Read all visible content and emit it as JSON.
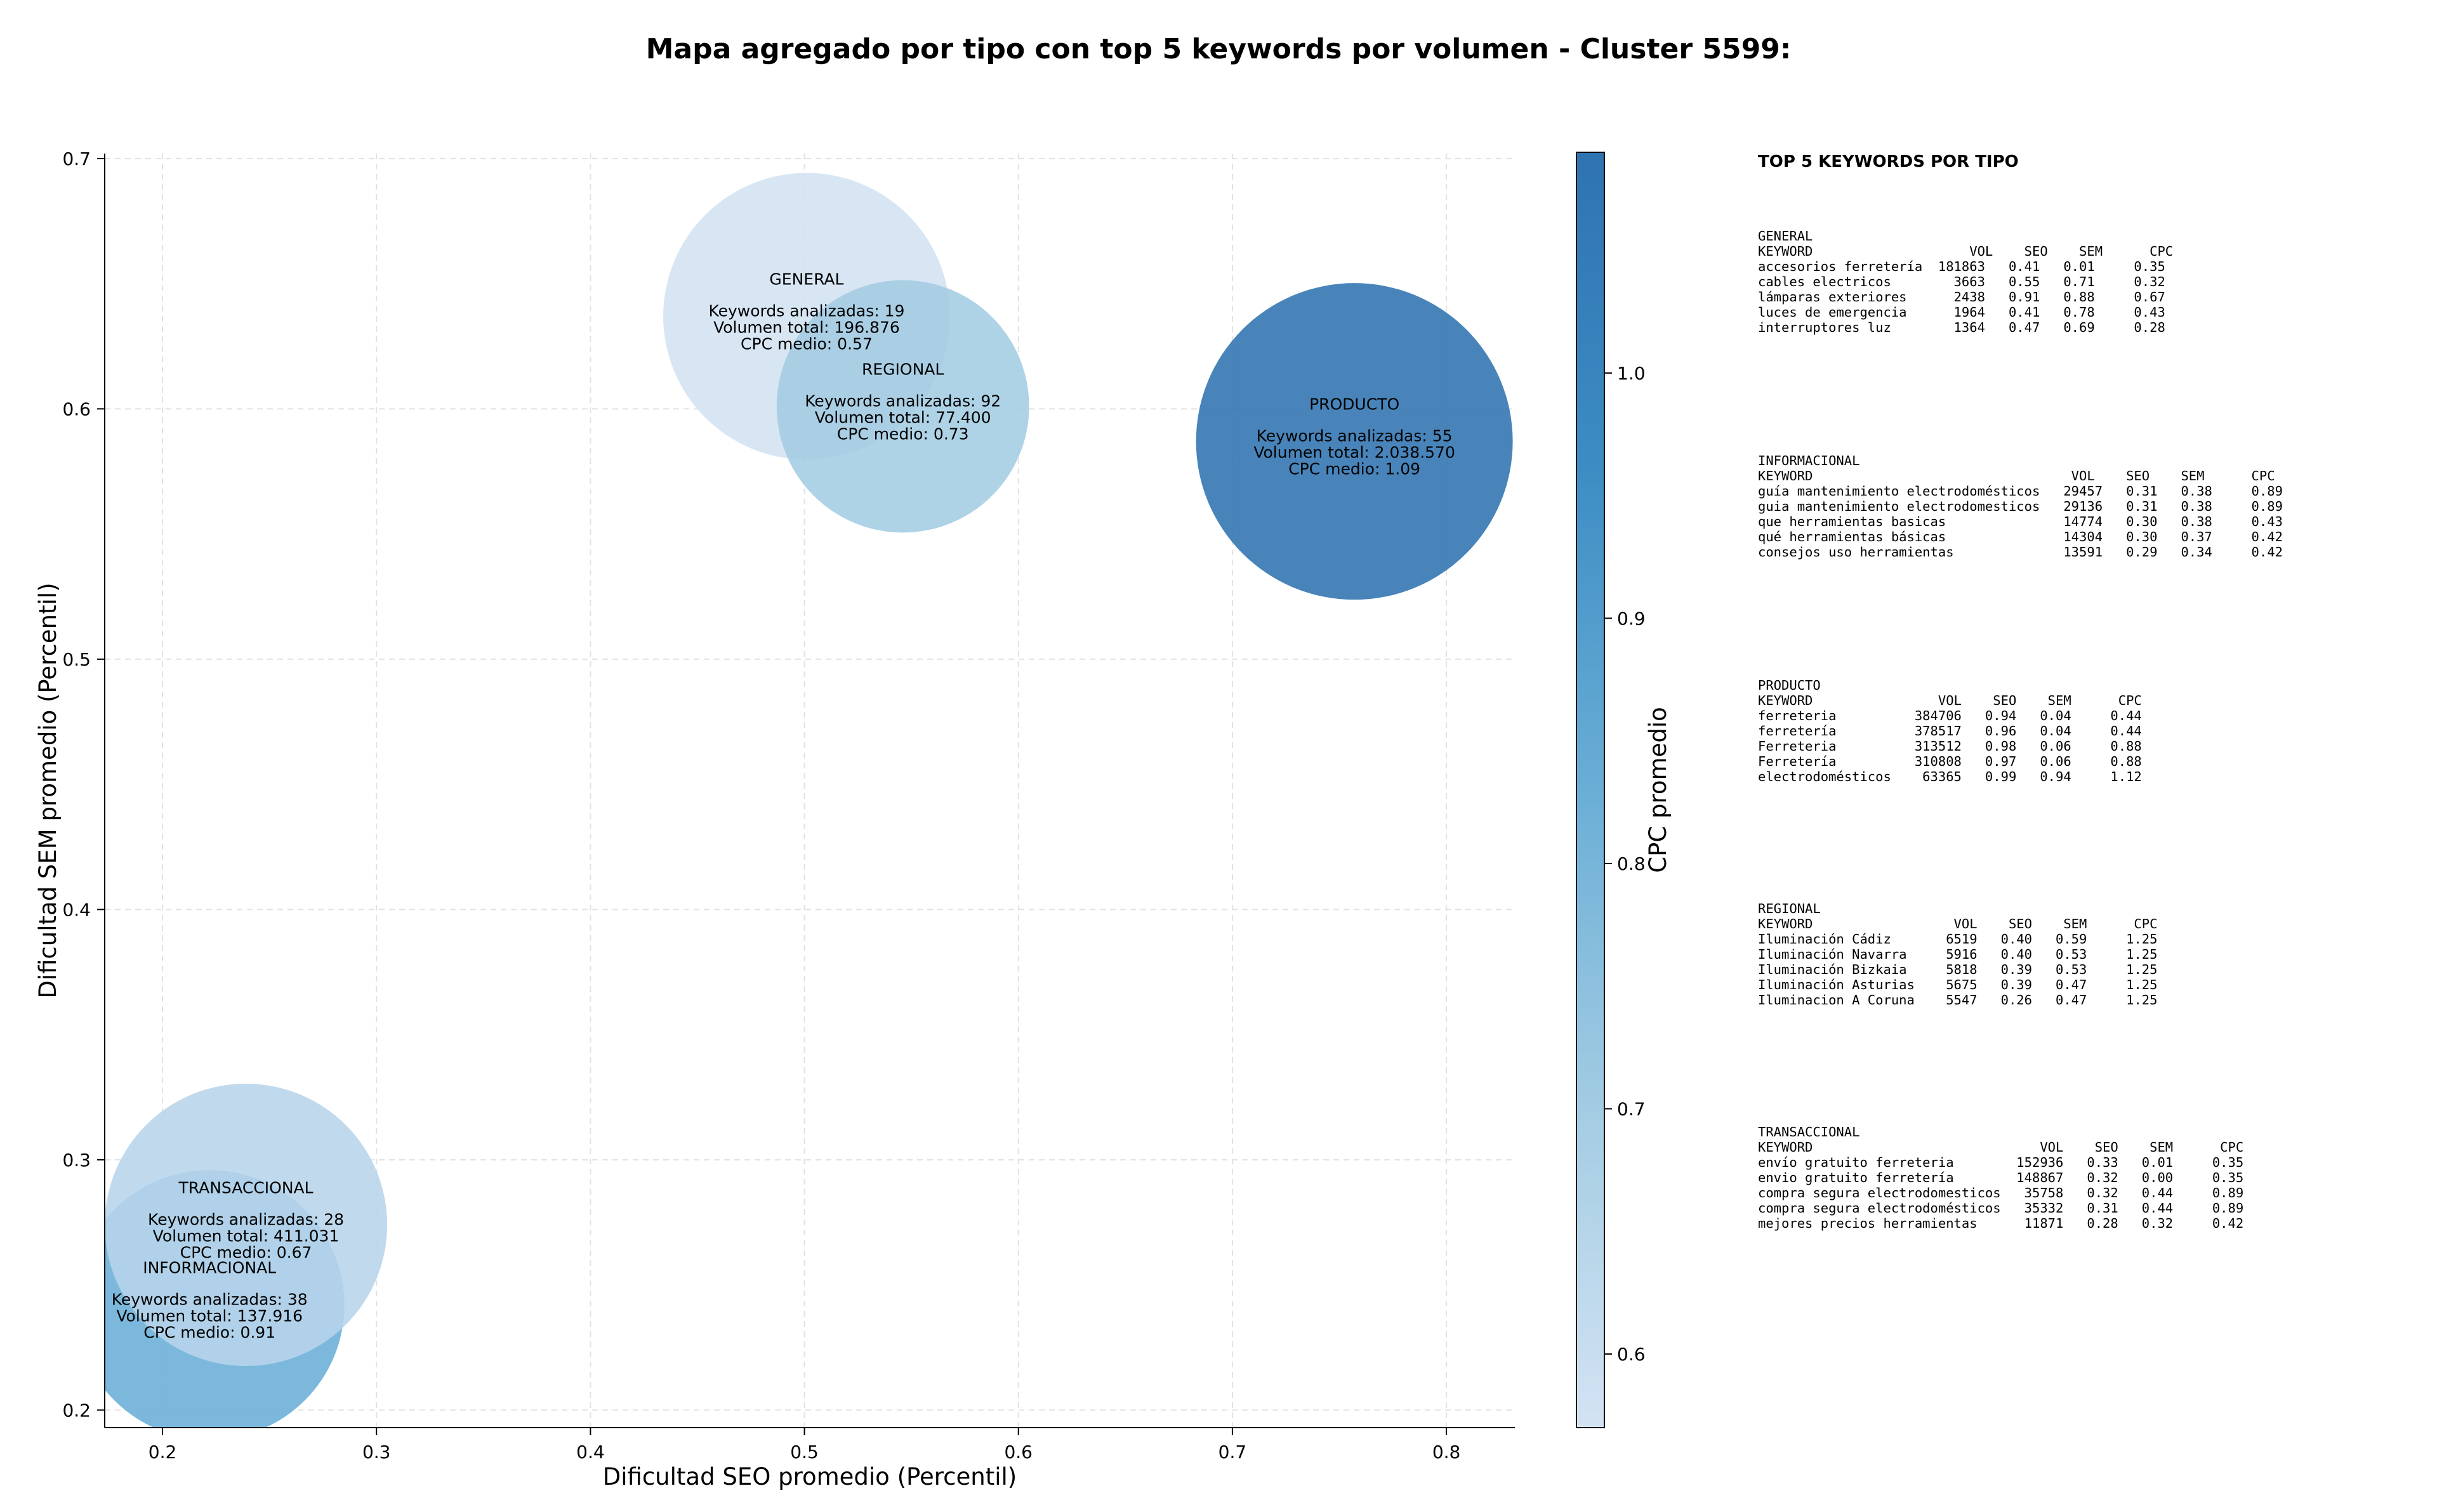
{
  "title": "Mapa agregado por tipo con top 5 keywords por volumen - Cluster 5599:",
  "chart_data": {
    "type": "scatter",
    "subtype": "bubble",
    "title": "Mapa agregado por tipo con top 5 keywords por volumen - Cluster 5599:",
    "xlabel": "Dificultad SEO promedio (Percentil)",
    "ylabel": "Dificultad SEM promedio (Percentil)",
    "xlim": [
      0.173,
      0.832
    ],
    "ylim": [
      0.193,
      0.702
    ],
    "xticks": [
      0.2,
      0.3,
      0.4,
      0.5,
      0.6,
      0.7,
      0.8
    ],
    "yticks": [
      0.2,
      0.3,
      0.4,
      0.5,
      0.6,
      0.7
    ],
    "xtick_labels": [
      "0.2",
      "0.3",
      "0.4",
      "0.5",
      "0.6",
      "0.7",
      "0.8"
    ],
    "ytick_labels": [
      "0.2",
      "0.3",
      "0.4",
      "0.5",
      "0.6",
      "0.7"
    ],
    "grid": true,
    "colorbar": {
      "label": "CPC promedio",
      "min": 0.57,
      "max": 1.09,
      "ticks": [
        0.6,
        0.7,
        0.8,
        0.9,
        1.0
      ],
      "tick_labels": [
        "0.6",
        "0.7",
        "0.8",
        "0.9",
        "1.0"
      ],
      "colormap": [
        "#d3e3f3",
        "#a3cce3",
        "#6aaed6",
        "#3d8dc4",
        "#2f73b1"
      ]
    },
    "points": [
      {
        "name": "GENERAL",
        "x": 0.501,
        "y": 0.637,
        "radius": 0.067,
        "color": "#d3e3f3",
        "lines": [
          "Keywords analizadas: 19",
          "Volumen total: 196.876",
          "CPC medio: 0.57"
        ]
      },
      {
        "name": "REGIONAL",
        "x": 0.546,
        "y": 0.601,
        "radius": 0.059,
        "color": "#a3cce3",
        "lines": [
          "Keywords analizadas: 92",
          "Volumen total: 77.400",
          "CPC medio: 0.73"
        ]
      },
      {
        "name": "PRODUCTO",
        "x": 0.757,
        "y": 0.587,
        "radius": 0.074,
        "color": "#2f73b1",
        "lines": [
          "Keywords analizadas: 55",
          "Volumen total: 2.038.570",
          "CPC medio: 1.09"
        ]
      },
      {
        "name": "INFORMACIONAL",
        "x": 0.222,
        "y": 0.242,
        "radius": 0.063,
        "color": "#6aaed6",
        "lines": [
          "Keywords analizadas: 38",
          "Volumen total: 137.916",
          "CPC medio: 0.91"
        ]
      },
      {
        "name": "TRANSACCIONAL",
        "x": 0.239,
        "y": 0.274,
        "radius": 0.066,
        "color": "#b7d4ea",
        "lines": [
          "Keywords analizadas: 28",
          "Volumen total: 411.031",
          "CPC medio: 0.67"
        ]
      }
    ]
  },
  "panel": {
    "heading": "TOP 5 KEYWORDS POR TIPO",
    "blocks": [
      {
        "name": "GENERAL",
        "header": "KEYWORD                    VOL    SEO    SEM      CPC",
        "rows": [
          "accesorios ferretería  181863   0.41   0.01     0.35",
          "cables electricos        3663   0.55   0.71     0.32",
          "lámparas exteriores      2438   0.91   0.88     0.67",
          "luces de emergencia      1964   0.41   0.78     0.43",
          "interruptores luz        1364   0.47   0.69     0.28"
        ]
      },
      {
        "name": "INFORMACIONAL",
        "header": "KEYWORD                                 VOL    SEO    SEM      CPC",
        "rows": [
          "guía mantenimiento electrodomésticos   29457   0.31   0.38     0.89",
          "guia mantenimiento electrodomesticos   29136   0.31   0.38     0.89",
          "que herramientas basicas               14774   0.30   0.38     0.43",
          "qué herramientas básicas               14304   0.30   0.37     0.42",
          "consejos uso herramientas              13591   0.29   0.34     0.42"
        ]
      },
      {
        "name": "PRODUCTO",
        "header": "KEYWORD                VOL    SEO    SEM      CPC",
        "rows": [
          "ferreteria          384706   0.94   0.04     0.44",
          "ferretería          378517   0.96   0.04     0.44",
          "Ferreteria          313512   0.98   0.06     0.88",
          "Ferretería          310808   0.97   0.06     0.88",
          "electrodomésticos    63365   0.99   0.94     1.12"
        ]
      },
      {
        "name": "REGIONAL",
        "header": "KEYWORD                  VOL    SEO    SEM      CPC",
        "rows": [
          "Iluminación Cádiz       6519   0.40   0.59     1.25",
          "Iluminación Navarra     5916   0.40   0.53     1.25",
          "Iluminación Bizkaia     5818   0.39   0.53     1.25",
          "Iluminación Asturias    5675   0.39   0.47     1.25",
          "Iluminacion A Coruna    5547   0.26   0.47     1.25"
        ]
      },
      {
        "name": "TRANSACCIONAL",
        "header": "KEYWORD                             VOL    SEO    SEM      CPC",
        "rows": [
          "envío gratuito ferreteria        152936   0.33   0.01     0.35",
          "envio gratuito ferretería        148867   0.32   0.00     0.35",
          "compra segura electrodomesticos   35758   0.32   0.44     0.89",
          "compra segura electrodomésticos   35332   0.31   0.44     0.89",
          "mejores precios herramientas      11871   0.28   0.32     0.42"
        ]
      }
    ]
  }
}
